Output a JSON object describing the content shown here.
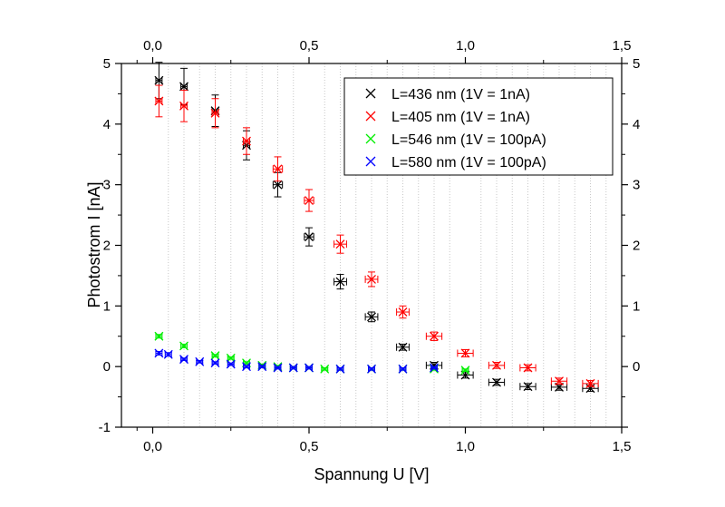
{
  "chart_data": {
    "type": "scatter",
    "xlabel": "Spannung U [V]",
    "ylabel": "Photostrom I [nA]",
    "xlim": [
      -0.1,
      1.5
    ],
    "ylim": [
      -1,
      5
    ],
    "xticks": [
      "0,0",
      "0,5",
      "1,0",
      "1,5"
    ],
    "yticks": [
      "-1",
      "0",
      "1",
      "2",
      "3",
      "4",
      "5"
    ],
    "yticks_right": [
      "0",
      "1",
      "2",
      "3",
      "4",
      "5"
    ],
    "legend_position": "top-right",
    "grid": "vertical dotted at minor x ticks",
    "series": [
      {
        "name": "L=436 nm (1V = 1nA)",
        "color": "#000000",
        "x": [
          0.02,
          0.1,
          0.2,
          0.3,
          0.4,
          0.5,
          0.6,
          0.7,
          0.8,
          0.9,
          1.0,
          1.1,
          1.2,
          1.3,
          1.4
        ],
        "y": [
          4.72,
          4.62,
          4.22,
          3.65,
          3.0,
          2.14,
          1.4,
          0.82,
          0.32,
          0.02,
          -0.14,
          -0.26,
          -0.33,
          -0.34,
          -0.36
        ],
        "yerr": [
          0.3,
          0.3,
          0.26,
          0.24,
          0.2,
          0.15,
          0.12,
          0.08,
          0.05,
          0.05,
          0.05,
          0.05,
          0.05,
          0.05,
          0.05
        ],
        "xerr": [
          0.01,
          0.01,
          0.01,
          0.01,
          0.015,
          0.015,
          0.02,
          0.02,
          0.02,
          0.025,
          0.025,
          0.025,
          0.025,
          0.025,
          0.025
        ]
      },
      {
        "name": "L=405 nm (1V = 1nA)",
        "color": "#ff0000",
        "x": [
          0.02,
          0.1,
          0.2,
          0.3,
          0.4,
          0.5,
          0.6,
          0.7,
          0.8,
          0.9,
          1.0,
          1.1,
          1.2,
          1.3,
          1.4
        ],
        "y": [
          4.38,
          4.3,
          4.18,
          3.72,
          3.26,
          2.74,
          2.02,
          1.44,
          0.9,
          0.5,
          0.22,
          0.02,
          -0.02,
          -0.24,
          -0.28
        ],
        "yerr": [
          0.26,
          0.26,
          0.24,
          0.22,
          0.2,
          0.18,
          0.15,
          0.12,
          0.1,
          0.07,
          0.06,
          0.05,
          0.05,
          0.05,
          0.05
        ],
        "xerr": [
          0.01,
          0.01,
          0.01,
          0.01,
          0.015,
          0.015,
          0.02,
          0.02,
          0.02,
          0.025,
          0.025,
          0.025,
          0.025,
          0.025,
          0.025
        ]
      },
      {
        "name": "L=546 nm (1V = 100pA)",
        "color": "#00ee00",
        "x": [
          0.02,
          0.1,
          0.2,
          0.25,
          0.3,
          0.35,
          0.4,
          0.45,
          0.5,
          0.55,
          0.6,
          0.7,
          0.8,
          0.9,
          1.0
        ],
        "y": [
          0.5,
          0.34,
          0.18,
          0.14,
          0.06,
          0.02,
          0.0,
          -0.02,
          -0.02,
          -0.04,
          -0.04,
          -0.04,
          -0.04,
          -0.04,
          -0.06
        ],
        "yerr": [
          0.03,
          0.03,
          0.02,
          0.02,
          0.02,
          0.02,
          0.02,
          0.02,
          0.02,
          0.02,
          0.02,
          0.02,
          0.02,
          0.02,
          0.02
        ],
        "xerr": [
          0.01,
          0.01,
          0.01,
          0.01,
          0.01,
          0.01,
          0.01,
          0.01,
          0.01,
          0.01,
          0.01,
          0.01,
          0.01,
          0.01,
          0.01
        ]
      },
      {
        "name": "L=580 nm (1V = 100pA)",
        "color": "#0000ff",
        "x": [
          0.02,
          0.05,
          0.1,
          0.15,
          0.2,
          0.25,
          0.3,
          0.35,
          0.4,
          0.45,
          0.5,
          0.6,
          0.7,
          0.8,
          0.9
        ],
        "y": [
          0.22,
          0.2,
          0.12,
          0.08,
          0.06,
          0.04,
          0.0,
          0.0,
          -0.02,
          -0.02,
          -0.02,
          -0.04,
          -0.04,
          -0.04,
          -0.02
        ],
        "yerr": [
          0.03,
          0.03,
          0.02,
          0.02,
          0.02,
          0.02,
          0.02,
          0.02,
          0.02,
          0.02,
          0.02,
          0.02,
          0.02,
          0.02,
          0.02
        ],
        "xerr": [
          0.01,
          0.01,
          0.01,
          0.01,
          0.01,
          0.01,
          0.01,
          0.01,
          0.01,
          0.01,
          0.01,
          0.01,
          0.01,
          0.01,
          0.01
        ]
      }
    ]
  }
}
